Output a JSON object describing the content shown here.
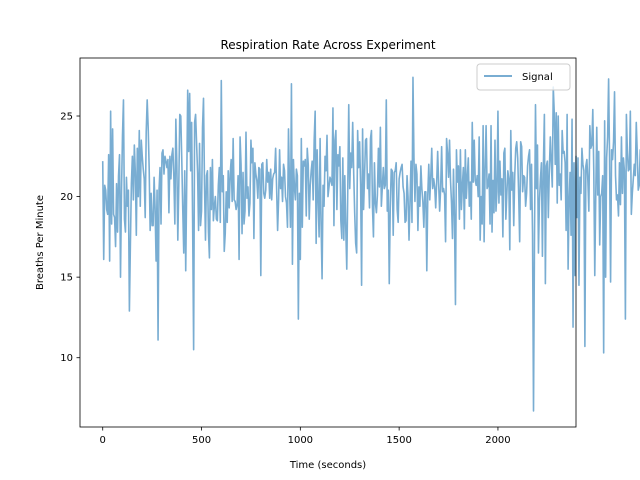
{
  "chart_data": {
    "type": "line",
    "title": "Respiration Rate Across Experiment",
    "xlabel": "Time (seconds)",
    "ylabel": "Breaths Per Minute",
    "xlim": [
      -115,
      2395
    ],
    "ylim": [
      5.7,
      28.6
    ],
    "xticks": [
      0,
      500,
      1000,
      1500,
      2000
    ],
    "yticks": [
      10,
      15,
      20,
      25
    ],
    "grid": false,
    "legend_position": "top-right",
    "series": [
      {
        "name": "Signal",
        "color": "#1f77b4",
        "opacity": 0.6,
        "x_start": 0,
        "x_step": 5,
        "values": [
          22.2,
          16.1,
          20.7,
          20.4,
          19.2,
          18.9,
          22.6,
          16.0,
          25.3,
          18.3,
          24.2,
          18.9,
          18.7,
          16.9,
          20.8,
          17.8,
          21.3,
          22.6,
          15.0,
          20.3,
          23.8,
          26.0,
          18.6,
          17.8,
          21.2,
          19.4,
          20.4,
          12.9,
          17.0,
          20.8,
          22.5,
          19.8,
          23.2,
          21.5,
          17.6,
          23.0,
          20.0,
          24.1,
          19.4,
          23.5,
          22.5,
          21.7,
          21.1,
          18.7,
          24.0,
          26.0,
          24.3,
          21.8,
          17.9,
          20.2,
          18.2,
          18.2,
          21.2,
          19.3,
          16.0,
          20.4,
          11.1,
          20.4,
          21.8,
          18.3,
          22.7,
          22.9,
          21.4,
          22.5,
          22.2,
          21.8,
          22.3,
          19.0,
          22.5,
          21.1,
          22.6,
          23.0,
          21.2,
          18.3,
          24.8,
          22.1,
          17.3,
          20.7,
          25.1,
          25.0,
          22.3,
          19.2,
          16.5,
          21.6,
          15.4,
          20.8,
          26.6,
          22.8,
          26.4,
          21.6,
          24.6,
          18.3,
          10.5,
          24.6,
          25.1,
          23.3,
          21.5,
          17.9,
          23.3,
          18.2,
          19.1,
          24.3,
          26.1,
          20.8,
          17.3,
          21.3,
          21.6,
          17.8,
          16.2,
          21.8,
          19.2,
          22.3,
          18.5,
          19.4,
          20.0,
          18.6,
          18.5,
          20.7,
          21.8,
          18.4,
          27.2,
          20.3,
          21.3,
          16.6,
          17.7,
          20.3,
          18.4,
          21.6,
          19.3,
          21.4,
          22.3,
          19.7,
          23.6,
          19.8,
          19.7,
          19.2,
          19.5,
          21.3,
          16.1,
          23.7,
          22.0,
          17.7,
          21.5,
          18.3,
          19.1,
          24.0,
          19.9,
          20.6,
          18.8,
          19.6,
          23.5,
          22.1,
          23.0,
          17.4,
          22.1,
          21.4,
          21.0,
          19.9,
          21.8,
          21.7,
          15.1,
          22.0,
          22.1,
          20.2,
          19.9,
          20.4,
          22.3,
          20.9,
          21.5,
          19.9,
          21.7,
          19.8,
          21.1,
          21.4,
          21.5,
          23.0,
          20.5,
          17.9,
          19.8,
          22.9,
          20.5,
          21.2,
          19.7,
          22.0,
          21.6,
          20.0,
          19.6,
          18.1,
          24.2,
          20.8,
          18.1,
          27.0,
          15.8,
          22.3,
          20.6,
          19.8,
          21.7,
          21.3,
          12.4,
          20.2,
          16.1,
          23.6,
          18.1,
          22.2,
          21.9,
          22.3,
          18.8,
          23.0,
          22.0,
          18.6,
          20.7,
          21.6,
          22.2,
          19.8,
          23.5,
          25.3,
          17.1,
          22.9,
          19.8,
          17.5,
          23.6,
          18.3,
          14.9,
          20.7,
          19.4,
          22.5,
          21.6,
          23.8,
          20.0,
          20.6,
          21.2,
          21.0,
          20.7,
          25.5,
          18.2,
          23.5,
          24.1,
          19.2,
          22.6,
          21.9,
          23.1,
          18.5,
          17.4,
          22.4,
          17.3,
          21.3,
          18.0,
          15.5,
          20.4,
          25.7,
          20.5,
          22.7,
          21.8,
          24.6,
          21.5,
          19.0,
          17.1,
          16.5,
          24.1,
          21.8,
          23.4,
          20.8,
          14.5,
          24.2,
          19.2,
          21.3,
          23.5,
          23.6,
          20.5,
          21.4,
          19.3,
          23.6,
          24.1,
          19.4,
          17.5,
          22.1,
          19.6,
          19.0,
          20.1,
          23.0,
          20.6,
          24.3,
          19.4,
          20.6,
          21.8,
          20.5,
          20.7,
          26.0,
          19.1,
          20.4,
          14.6,
          19.3,
          21.7,
          21.6,
          17.6,
          21.5,
          21.6,
          22.1,
          19.2,
          18.4,
          21.1,
          21.5,
          21.8,
          22.0,
          20.6,
          20.2,
          18.4,
          18.5,
          21.3,
          20.0,
          17.3,
          19.7,
          22.2,
          18.4,
          27.4,
          22.4,
          19.7,
          22.0,
          21.4,
          17.9,
          20.6,
          19.4,
          21.9,
          20.5,
          19.7,
          18.1,
          20.3,
          20.3,
          15.4,
          20.1,
          22.0,
          19.8,
          21.2,
          23.0,
          20.5,
          21.1,
          20.6,
          19.3,
          20.9,
          22.8,
          20.8,
          19.1,
          20.5,
          23.1,
          20.3,
          20.5,
          20.1,
          17.2,
          23.6,
          22.7,
          21.2,
          23.5,
          21.0,
          19.6,
          17.4,
          21.7,
          18.8,
          13.3,
          22.9,
          20.9,
          21.9,
          18.6,
          22.9,
          19.2,
          20.7,
          21.8,
          18.0,
          22.9,
          19.9,
          21.2,
          22.4,
          19.4,
          20.9,
          18.6,
          24.6,
          20.9,
          23.5,
          21.0,
          20.7,
          21.3,
          20.0,
          23.7,
          17.3,
          20.0,
          18.3,
          24.4,
          17.2,
          21.7,
          24.4,
          20.5,
          20.7,
          21.4,
          18.3,
          24.4,
          17.8,
          21.0,
          19.0,
          23.5,
          19.1,
          20.3,
          25.3,
          19.6,
          22.2,
          20.1,
          21.1,
          17.5,
          22.7,
          23.0,
          18.6,
          20.2,
          21.6,
          21.1,
          16.7,
          24.1,
          20.4,
          21.5,
          18.2,
          21.3,
          23.0,
          23.4,
          22.4,
          20.1,
          17.2,
          23.4,
          23.1,
          20.3,
          21.3,
          21.2,
          19.4,
          20.2,
          21.9,
          22.5,
          22.9,
          19.2,
          22.0,
          17.7,
          6.7,
          17.5,
          25.7,
          20.5,
          23.2,
          16.5,
          19.7,
          21.1,
          22.1,
          16.3,
          21.9,
          25.1,
          14.6,
          21.9,
          22.2,
          18.7,
          21.6,
          23.7,
          22.1,
          20.6,
          26.8,
          25.2,
          22.0,
          25.2,
          19.6,
          25.0,
          20.7,
          21.4,
          19.8,
          24.1,
          22.7,
          22.8,
          22.1,
          17.9,
          25.1,
          15.5,
          19.7,
          21.5,
          17.6,
          24.8,
          11.9,
          22.1,
          15.1,
          22.5,
          18.7,
          22.4,
          14.5,
          21.2,
          20.2,
          23.0,
          22.0,
          21.6,
          10.7,
          21.9,
          22.3,
          21.0,
          19.1,
          24.4,
          23.0,
          23.2,
          25.4,
          21.6,
          15.1,
          20.1,
          24.3,
          20.1,
          22.8,
          17.0,
          20.0,
          20.2,
          21.3,
          10.3,
          24.7,
          15.0,
          22.4,
          23.7,
          27.3,
          22.2,
          14.7,
          22.9,
          22.3,
          23.4,
          26.5,
          21.3,
          19.8,
          20.1,
          18.8,
          22.1,
          19.5,
          23.7,
          20.2,
          22.4,
          21.6,
          12.4,
          25.1,
          22.8,
          21.6,
          21.7,
          25.3,
          18.9,
          20.2,
          21.1,
          22.0,
          21.3,
          24.6,
          22.7,
          20.4,
          20.7,
          22.9,
          20.6,
          16.2,
          24.2,
          19.8,
          19.9,
          20.8
        ]
      }
    ]
  }
}
